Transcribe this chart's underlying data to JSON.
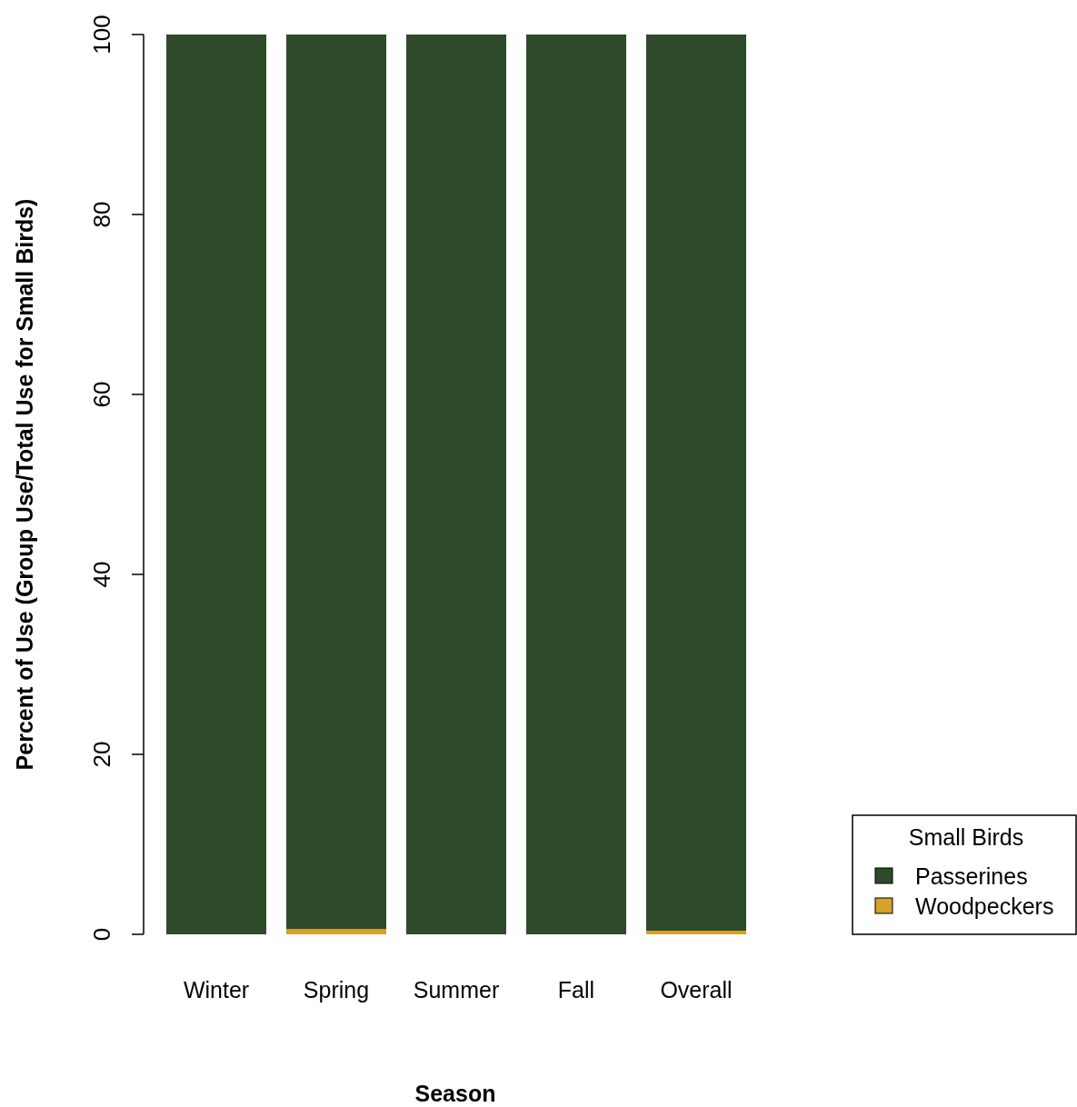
{
  "chart_data": {
    "type": "bar",
    "stacked": true,
    "xlabel": "Season",
    "ylabel": "Percent of Use (Group Use/Total Use for Small Birds)",
    "legend_title": "Small Birds",
    "legend": "bottom right",
    "categories": [
      "Winter",
      "Spring",
      "Summer",
      "Fall",
      "Overall"
    ],
    "series": [
      {
        "name": "Woodpeckers",
        "color": "#d4a12a",
        "values": [
          0,
          0.6,
          0,
          0,
          0.4
        ]
      },
      {
        "name": "Passerines",
        "color": "#2e4a2b",
        "values": [
          100,
          99.4,
          100,
          100,
          99.6
        ]
      }
    ],
    "ylim": [
      0,
      100
    ],
    "yticks": [
      0,
      20,
      40,
      60,
      80,
      100
    ],
    "grid": false
  }
}
